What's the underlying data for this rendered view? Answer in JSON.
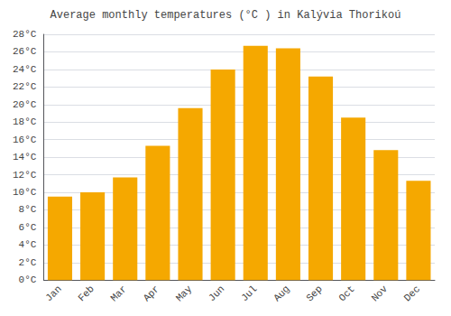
{
  "chart_data": {
    "type": "bar",
    "title": "Average monthly temperatures (°C ) in Kalývia Thorikoú",
    "categories": [
      "Jan",
      "Feb",
      "Mar",
      "Apr",
      "May",
      "Jun",
      "Jul",
      "Aug",
      "Sep",
      "Oct",
      "Nov",
      "Dec"
    ],
    "values": [
      9.5,
      10.0,
      11.7,
      15.3,
      19.6,
      24.0,
      26.7,
      26.4,
      23.2,
      18.5,
      14.8,
      11.3
    ],
    "color": "#F5A800",
    "ylim": [
      0,
      28
    ],
    "yticks": [
      {
        "value": 0,
        "label": "0°C"
      },
      {
        "value": 2,
        "label": "2°C"
      },
      {
        "value": 4,
        "label": "4°C"
      },
      {
        "value": 6,
        "label": "6°C"
      },
      {
        "value": 8,
        "label": "8°C"
      },
      {
        "value": 10,
        "label": "10°C"
      },
      {
        "value": 12,
        "label": "12°C"
      },
      {
        "value": 14,
        "label": "14°C"
      },
      {
        "value": 16,
        "label": "16°C"
      },
      {
        "value": 18,
        "label": "18°C"
      },
      {
        "value": 20,
        "label": "20°C"
      },
      {
        "value": 22,
        "label": "22°C"
      },
      {
        "value": 24,
        "label": "24°C"
      },
      {
        "value": 26,
        "label": "26°C"
      },
      {
        "value": 28,
        "label": "28°C"
      }
    ],
    "grid": true
  }
}
